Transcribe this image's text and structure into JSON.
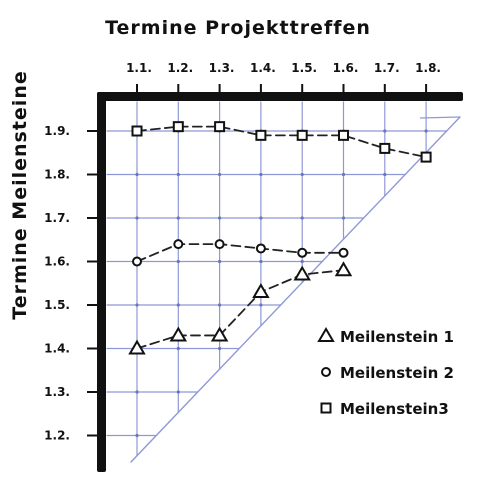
{
  "chart_data": {
    "type": "line",
    "title": "Termine Projekttreffen",
    "xlabel": "Termine Projekttreffen",
    "ylabel": "Termine Meilensteine",
    "x": [
      "1.1.",
      "1.2.",
      "1.3.",
      "1.4.",
      "1.5.",
      "1.6.",
      "1.7.",
      "1.8."
    ],
    "y_ticks": [
      "1.9.",
      "1.8.",
      "1.7.",
      "1.6.",
      "1.5.",
      "1.4.",
      "1.3.",
      "1.2."
    ],
    "ylim": [
      "1.2.",
      "1.9."
    ],
    "axis_position": "x-axis at top, y-axis at left",
    "grid": true,
    "legend_position": "bottom-right",
    "series": [
      {
        "name": "Meilenstein 1",
        "marker": "triangle",
        "points": [
          {
            "x": "1.1.",
            "y": "1.4."
          },
          {
            "x": "1.2.",
            "y": "1.43."
          },
          {
            "x": "1.3.",
            "y": "1.43."
          },
          {
            "x": "1.4.",
            "y": "1.53."
          },
          {
            "x": "1.5.",
            "y": "1.57."
          },
          {
            "x": "1.6.",
            "y": "1.58."
          }
        ]
      },
      {
        "name": "Meilenstein 2",
        "marker": "circle",
        "points": [
          {
            "x": "1.1.",
            "y": "1.6."
          },
          {
            "x": "1.2.",
            "y": "1.64."
          },
          {
            "x": "1.3.",
            "y": "1.64."
          },
          {
            "x": "1.4.",
            "y": "1.63."
          },
          {
            "x": "1.5.",
            "y": "1.62."
          },
          {
            "x": "1.6.",
            "y": "1.62."
          }
        ]
      },
      {
        "name": "Meilenstein3",
        "marker": "square",
        "points": [
          {
            "x": "1.1.",
            "y": "1.9."
          },
          {
            "x": "1.2.",
            "y": "1.91."
          },
          {
            "x": "1.3.",
            "y": "1.91."
          },
          {
            "x": "1.4.",
            "y": "1.89."
          },
          {
            "x": "1.5.",
            "y": "1.89."
          },
          {
            "x": "1.6.",
            "y": "1.89."
          },
          {
            "x": "1.7.",
            "y": "1.86."
          },
          {
            "x": "1.8.",
            "y": "1.84."
          }
        ]
      }
    ],
    "legend": [
      {
        "marker": "triangle",
        "label": "Meilenstein 1"
      },
      {
        "marker": "circle",
        "label": "Meilenstein 2"
      },
      {
        "marker": "square",
        "label": "Meilenstein3"
      }
    ],
    "colors": {
      "ink": "#111111",
      "grid": "#8f98d6",
      "series_line": "#222222"
    }
  }
}
